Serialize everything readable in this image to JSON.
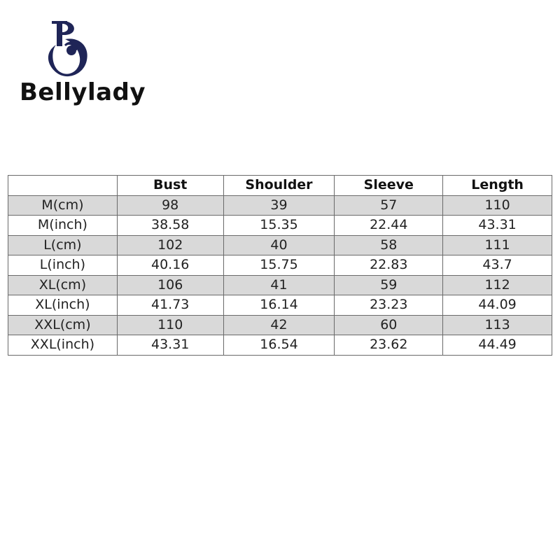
{
  "brand": {
    "name": "Bellylady",
    "logo_letters": "BO",
    "color": "#1f2557"
  },
  "table": {
    "headers": [
      "",
      "Bust",
      "Shoulder",
      "Sleeve",
      "Length"
    ],
    "rows": [
      [
        "M(cm)",
        "98",
        "39",
        "57",
        "110"
      ],
      [
        "M(inch)",
        "38.58",
        "15.35",
        "22.44",
        "43.31"
      ],
      [
        "L(cm)",
        "102",
        "40",
        "58",
        "111"
      ],
      [
        "L(inch)",
        "40.16",
        "15.75",
        "22.83",
        "43.7"
      ],
      [
        "XL(cm)",
        "106",
        "41",
        "59",
        "112"
      ],
      [
        "XL(inch)",
        "41.73",
        "16.14",
        "23.23",
        "44.09"
      ],
      [
        "XXL(cm)",
        "110",
        "42",
        "60",
        "113"
      ],
      [
        "XXL(inch)",
        "43.31",
        "16.54",
        "23.62",
        "44.49"
      ]
    ],
    "stripe_color": "#d9d9d9"
  }
}
